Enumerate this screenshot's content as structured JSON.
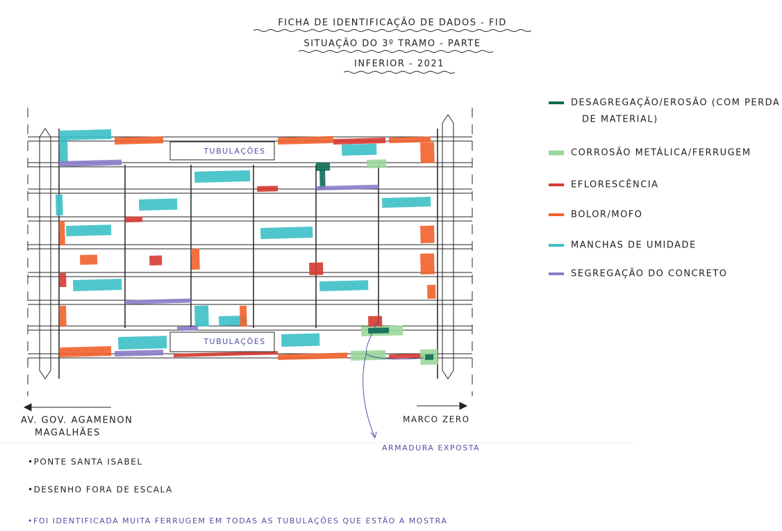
{
  "header": {
    "lines": [
      "FICHA DE IDENTIFICAÇÃO DE DADOS - FID",
      "SITUAÇÃO DO 3º TRAMO - PARTE",
      "INFERIOR - 2021"
    ]
  },
  "legend": [
    {
      "label": "DESAGREGAÇÃO/EROSÃO (COM PERDA",
      "label2": "DE MATERIAL)",
      "color": "#0e6b55"
    },
    {
      "label": "CORROSÃO METÁLICA/FERRUGEM",
      "color": "#9bd89b"
    },
    {
      "label": "EFLORESCÊNCIA",
      "color": "#d63a30"
    },
    {
      "label": "BOLOR/MOFO",
      "color": "#f2622c"
    },
    {
      "label": "MANCHAS DE UMIDADE",
      "color": "#3cc0c6"
    },
    {
      "label": "SEGREGAÇÃO DO CONCRETO",
      "color": "#8c7cc8"
    }
  ],
  "drawing": {
    "pipes_top": "TUBULAÇÕES",
    "pipes_bottom": "TUBULAÇÕES",
    "left_label": [
      "AV. GOV. AGAMENON",
      "MAGALHÃES"
    ],
    "right_label": "MARCO ZERO",
    "callout": "ARMADURA EXPOSTA"
  },
  "notes": [
    "•PONTE SANTA ISABEL",
    "•DESENHO FORA DE ESCALA",
    "•FOI IDENTIFICADA MUITA FERRUGEM EM TODAS AS TUBULAÇÕES QUE ESTÃO A MOSTRA"
  ]
}
